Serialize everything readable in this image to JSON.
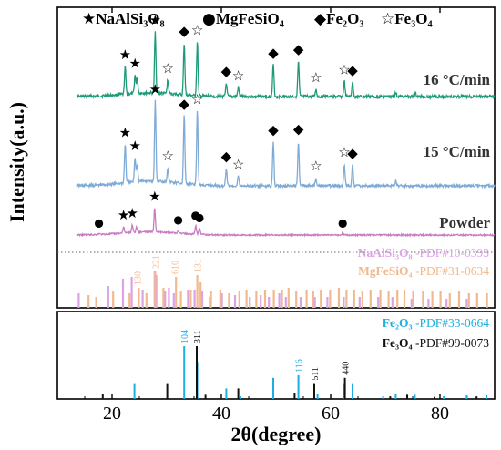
{
  "chart_data": {
    "type": "line",
    "xlabel": "2θ(degree)",
    "ylabel": "Intensity(a.u.)",
    "xlim": [
      10,
      90
    ],
    "x_ticks": [
      20,
      40,
      60,
      80
    ],
    "legend": [
      {
        "symbol": "★",
        "label": "NaAlSi₃O₈"
      },
      {
        "symbol": "●",
        "label": "MgFeSiO₄"
      },
      {
        "symbol": "◆",
        "label": "Fe₂O₃"
      },
      {
        "symbol": "☆",
        "label": "Fe₃O₄"
      }
    ],
    "series": [
      {
        "name": "16 °C/min",
        "color": "#1d9a78",
        "peaks": [
          {
            "x": 22.4,
            "h": 0.45,
            "m": "★"
          },
          {
            "x": 24.2,
            "h": 0.3,
            "m": "★"
          },
          {
            "x": 24.6,
            "h": 0.26
          },
          {
            "x": 27.9,
            "h": 1.0,
            "m": "★"
          },
          {
            "x": 30.2,
            "h": 0.22,
            "m": "☆"
          },
          {
            "x": 33.2,
            "h": 0.85,
            "m": "◆"
          },
          {
            "x": 35.6,
            "h": 0.88,
            "m": "☆"
          },
          {
            "x": 40.9,
            "h": 0.22,
            "m": "◆"
          },
          {
            "x": 43.1,
            "h": 0.15,
            "m": "☆"
          },
          {
            "x": 49.5,
            "h": 0.52,
            "m": "◆"
          },
          {
            "x": 54.1,
            "h": 0.58,
            "m": "◆"
          },
          {
            "x": 57.3,
            "h": 0.12,
            "m": "☆"
          },
          {
            "x": 62.5,
            "h": 0.25,
            "m": "☆"
          },
          {
            "x": 64.0,
            "h": 0.24,
            "m": "◆"
          },
          {
            "x": 71.9,
            "h": 0.06
          },
          {
            "x": 75.5,
            "h": 0.05
          }
        ]
      },
      {
        "name": "15 °C/min",
        "color": "#7eabd6",
        "peaks": [
          {
            "x": 22.4,
            "h": 0.48,
            "m": "★"
          },
          {
            "x": 24.2,
            "h": 0.3,
            "m": "★"
          },
          {
            "x": 24.6,
            "h": 0.22
          },
          {
            "x": 27.9,
            "h": 1.0,
            "m": "★"
          },
          {
            "x": 30.2,
            "h": 0.18,
            "m": "☆"
          },
          {
            "x": 33.2,
            "h": 0.85,
            "m": "◆"
          },
          {
            "x": 35.6,
            "h": 0.92,
            "m": "☆"
          },
          {
            "x": 40.9,
            "h": 0.22,
            "m": "◆"
          },
          {
            "x": 43.1,
            "h": 0.12,
            "m": "☆"
          },
          {
            "x": 49.5,
            "h": 0.55,
            "m": "◆"
          },
          {
            "x": 54.1,
            "h": 0.56,
            "m": "◆"
          },
          {
            "x": 57.3,
            "h": 0.1,
            "m": "☆"
          },
          {
            "x": 62.5,
            "h": 0.27,
            "m": "☆"
          },
          {
            "x": 64.0,
            "h": 0.26,
            "m": "◆"
          },
          {
            "x": 71.9,
            "h": 0.06
          }
        ]
      },
      {
        "name": "Powder",
        "color": "#c77bc0",
        "peaks": [
          {
            "x": 17.6,
            "h": 0.02,
            "m": "●"
          },
          {
            "x": 22.1,
            "h": 0.12,
            "m": "★"
          },
          {
            "x": 23.7,
            "h": 0.14,
            "m": "★"
          },
          {
            "x": 24.5,
            "h": 0.1
          },
          {
            "x": 27.8,
            "h": 0.45,
            "m": "★"
          },
          {
            "x": 32.1,
            "h": 0.05,
            "m": "●"
          },
          {
            "x": 35.3,
            "h": 0.16,
            "m": "●"
          },
          {
            "x": 36.0,
            "h": 0.12,
            "m": "●"
          },
          {
            "x": 62.2,
            "h": 0.03,
            "m": "●"
          }
        ]
      }
    ],
    "references": [
      {
        "name": "NaAlSi₃O₈",
        "pdf": "-PDF#10-0393",
        "color": "#dca2e6",
        "sticks": [
          [
            13.9,
            0.4
          ],
          [
            19.3,
            0.6
          ],
          [
            22.0,
            0.8
          ],
          [
            23.6,
            0.85
          ],
          [
            25.6,
            0.5
          ],
          [
            27.8,
            1.0
          ],
          [
            28.1,
            0.9
          ],
          [
            29.7,
            0.45
          ],
          [
            30.4,
            0.55
          ],
          [
            31.3,
            0.4
          ],
          [
            33.9,
            0.5
          ],
          [
            35.1,
            0.5
          ],
          [
            36.5,
            0.45
          ],
          [
            37.9,
            0.3
          ],
          [
            40.1,
            0.4
          ],
          [
            42.5,
            0.35
          ],
          [
            45.2,
            0.3
          ],
          [
            47.2,
            0.35
          ],
          [
            48.7,
            0.3
          ],
          [
            50.6,
            0.4
          ],
          [
            51.8,
            0.3
          ],
          [
            54.5,
            0.3
          ],
          [
            57.1,
            0.3
          ],
          [
            59.4,
            0.3
          ],
          [
            62.4,
            0.3
          ],
          [
            65.3,
            0.3
          ],
          [
            68.7,
            0.3
          ],
          [
            71.3,
            0.3
          ],
          [
            74.8,
            0.25
          ],
          [
            77.9,
            0.25
          ],
          [
            81.2,
            0.25
          ],
          [
            84.9,
            0.25
          ]
        ]
      },
      {
        "name": "MgFeSiO₄",
        "pdf": "-PDF#31-0634",
        "color": "#f2b98c",
        "sticks": [
          [
            15.7,
            0.35
          ],
          [
            17.1,
            0.3
          ],
          [
            20.2,
            0.45
          ],
          [
            23.2,
            0.4
          ],
          [
            24.9,
            0.55
          ],
          [
            26.3,
            0.4
          ],
          [
            27.9,
            1.0
          ],
          [
            29.4,
            0.55
          ],
          [
            31.7,
            0.85
          ],
          [
            32.6,
            0.45
          ],
          [
            34.4,
            0.5
          ],
          [
            35.6,
            0.9
          ],
          [
            36.2,
            0.7
          ],
          [
            38.1,
            0.45
          ],
          [
            39.8,
            0.5
          ],
          [
            41.4,
            0.4
          ],
          [
            43.3,
            0.45
          ],
          [
            44.6,
            0.5
          ],
          [
            46.4,
            0.45
          ],
          [
            48.0,
            0.5
          ],
          [
            49.6,
            0.5
          ],
          [
            51.1,
            0.5
          ],
          [
            52.3,
            0.55
          ],
          [
            53.7,
            0.45
          ],
          [
            55.6,
            0.5
          ],
          [
            56.8,
            0.45
          ],
          [
            58.2,
            0.5
          ],
          [
            59.9,
            0.5
          ],
          [
            61.5,
            0.55
          ],
          [
            62.9,
            0.5
          ],
          [
            64.3,
            0.5
          ],
          [
            65.8,
            0.45
          ],
          [
            67.3,
            0.5
          ],
          [
            69.1,
            0.5
          ],
          [
            70.6,
            0.45
          ],
          [
            72.2,
            0.5
          ],
          [
            73.5,
            0.5
          ],
          [
            75.1,
            0.45
          ],
          [
            76.9,
            0.45
          ],
          [
            78.6,
            0.45
          ],
          [
            80.1,
            0.45
          ],
          [
            81.8,
            0.4
          ],
          [
            83.5,
            0.45
          ],
          [
            85.3,
            0.4
          ],
          [
            86.8,
            0.4
          ],
          [
            88.6,
            0.4
          ]
        ],
        "hkl": [
          {
            "x": 24.6,
            "label": "130"
          },
          {
            "x": 27.9,
            "label": "221"
          },
          {
            "x": 31.4,
            "label": "610"
          },
          {
            "x": 35.6,
            "label": "131"
          }
        ]
      },
      {
        "name": "Fe₂O₃",
        "pdf": "-PDF#33-0664",
        "color": "#1eaee0",
        "sticks": [
          [
            24.1,
            0.3
          ],
          [
            33.2,
            1.0
          ],
          [
            35.6,
            0.7
          ],
          [
            40.9,
            0.2
          ],
          [
            43.5,
            0.05
          ],
          [
            49.5,
            0.4
          ],
          [
            54.1,
            0.45
          ],
          [
            57.6,
            0.1
          ],
          [
            62.5,
            0.3
          ],
          [
            64.0,
            0.3
          ],
          [
            69.6,
            0.05
          ],
          [
            71.9,
            0.1
          ],
          [
            75.4,
            0.08
          ],
          [
            80.7,
            0.05
          ],
          [
            84.9,
            0.07
          ],
          [
            88.5,
            0.07
          ]
        ],
        "hkl": [
          {
            "x": 33.2,
            "label": "104"
          },
          {
            "x": 54.1,
            "label": "116"
          }
        ]
      },
      {
        "name": "Fe₃O₄",
        "pdf": "-PDF#99-0073",
        "color": "#111111",
        "sticks": [
          [
            18.3,
            0.1
          ],
          [
            30.1,
            0.3
          ],
          [
            35.5,
            1.0
          ],
          [
            37.1,
            0.08
          ],
          [
            43.1,
            0.2
          ],
          [
            53.4,
            0.12
          ],
          [
            57.0,
            0.3
          ],
          [
            62.6,
            0.4
          ],
          [
            70.9,
            0.05
          ],
          [
            74.0,
            0.08
          ],
          [
            79.0,
            0.04
          ],
          [
            86.7,
            0.05
          ]
        ],
        "hkl": [
          {
            "x": 35.5,
            "label": "311"
          },
          {
            "x": 57.0,
            "label": "511"
          },
          {
            "x": 62.6,
            "label": "440"
          }
        ]
      }
    ]
  }
}
